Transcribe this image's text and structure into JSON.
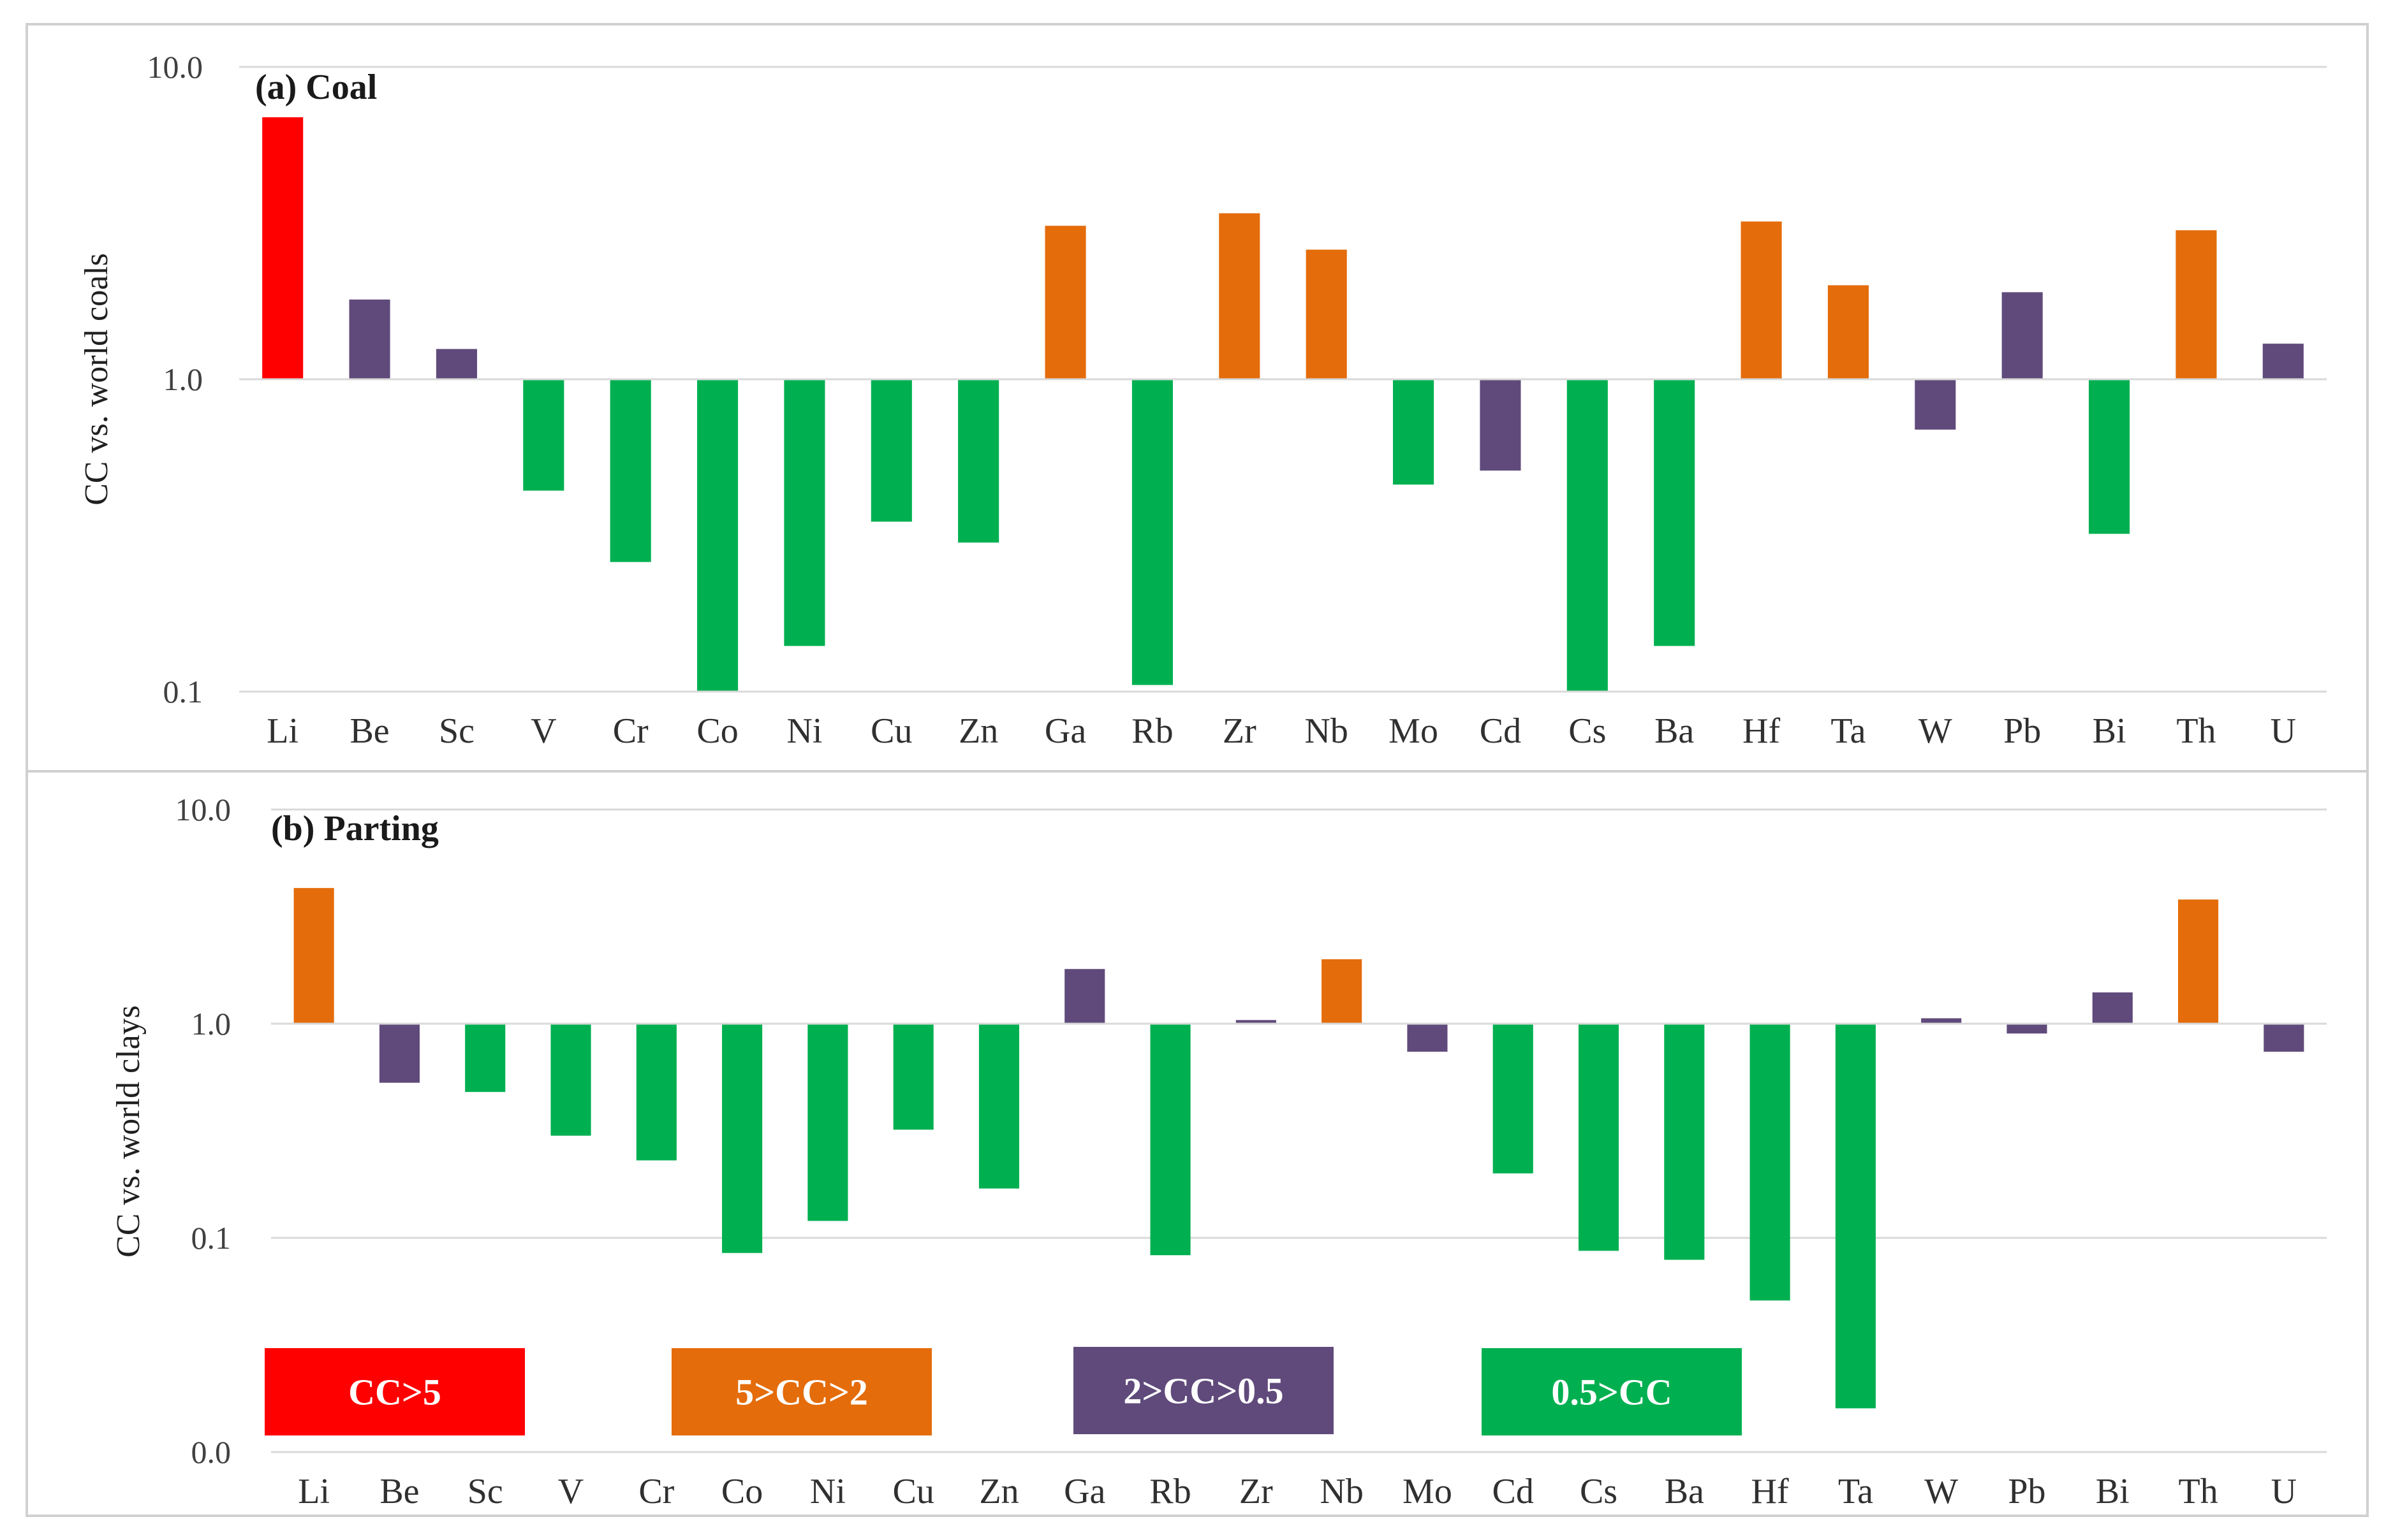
{
  "colors": {
    "cc_gt_5": "#ff0000",
    "cc_5_2": "#e46c0a",
    "cc_2_05": "#604a7b",
    "cc_lt_05": "#00b050"
  },
  "legend": [
    {
      "label": "CC>5",
      "color_key": "cc_gt_5"
    },
    {
      "label": "5>CC>2",
      "color_key": "cc_5_2"
    },
    {
      "label": "2>CC>0.5",
      "color_key": "cc_2_05"
    },
    {
      "label": "0.5>CC",
      "color_key": "cc_lt_05"
    }
  ],
  "chart_data": [
    {
      "type": "bar",
      "title": "(a) Coal",
      "ylabel": "CC vs. world coals",
      "yscale": "log",
      "ylim": [
        0.1,
        10.0
      ],
      "ytick_labels": [
        "10.0",
        "1.0",
        "0.1"
      ],
      "ytick_values": [
        10.0,
        1.0,
        0.1
      ],
      "baseline": 1.0,
      "categories": [
        "Li",
        "Be",
        "Sc",
        "V",
        "Cr",
        "Co",
        "Ni",
        "Cu",
        "Zn",
        "Ga",
        "Rb",
        "Zr",
        "Nb",
        "Mo",
        "Cd",
        "Cs",
        "Ba",
        "Hf",
        "Ta",
        "W",
        "Pb",
        "Bi",
        "Th",
        "U"
      ],
      "values": [
        6.9,
        1.8,
        1.25,
        0.44,
        0.26,
        0.1,
        0.14,
        0.35,
        0.3,
        3.1,
        0.105,
        3.4,
        2.6,
        0.46,
        0.51,
        0.1,
        0.14,
        3.2,
        2.0,
        0.69,
        1.9,
        0.32,
        3.0,
        1.3
      ],
      "classes": [
        "cc_gt_5",
        "cc_2_05",
        "cc_2_05",
        "cc_lt_05",
        "cc_lt_05",
        "cc_lt_05",
        "cc_lt_05",
        "cc_lt_05",
        "cc_lt_05",
        "cc_5_2",
        "cc_lt_05",
        "cc_5_2",
        "cc_5_2",
        "cc_lt_05",
        "cc_2_05",
        "cc_lt_05",
        "cc_lt_05",
        "cc_5_2",
        "cc_5_2",
        "cc_2_05",
        "cc_2_05",
        "cc_lt_05",
        "cc_5_2",
        "cc_2_05"
      ]
    },
    {
      "type": "bar",
      "title": "(b) Parting",
      "ylabel": "CC vs. world clays",
      "yscale": "log",
      "ylim": [
        0.01,
        10.0
      ],
      "ytick_labels": [
        "10.0",
        "1.0",
        "0.1",
        "0.0"
      ],
      "ytick_values": [
        10.0,
        1.0,
        0.1,
        0.01
      ],
      "baseline": 1.0,
      "categories": [
        "Li",
        "Be",
        "Sc",
        "V",
        "Cr",
        "Co",
        "Ni",
        "Cu",
        "Zn",
        "Ga",
        "Rb",
        "Zr",
        "Nb",
        "Mo",
        "Cd",
        "Cs",
        "Ba",
        "Hf",
        "Ta",
        "W",
        "Pb",
        "Bi",
        "Th",
        "U"
      ],
      "values": [
        4.3,
        0.53,
        0.48,
        0.3,
        0.23,
        0.085,
        0.12,
        0.32,
        0.17,
        1.8,
        0.083,
        1.04,
        2.0,
        0.74,
        0.2,
        0.087,
        0.079,
        0.051,
        0.016,
        1.06,
        0.9,
        1.4,
        3.8,
        0.74
      ],
      "classes": [
        "cc_5_2",
        "cc_2_05",
        "cc_lt_05",
        "cc_lt_05",
        "cc_lt_05",
        "cc_lt_05",
        "cc_lt_05",
        "cc_lt_05",
        "cc_lt_05",
        "cc_2_05",
        "cc_lt_05",
        "cc_2_05",
        "cc_5_2",
        "cc_2_05",
        "cc_lt_05",
        "cc_lt_05",
        "cc_lt_05",
        "cc_lt_05",
        "cc_lt_05",
        "cc_2_05",
        "cc_2_05",
        "cc_2_05",
        "cc_5_2",
        "cc_2_05"
      ]
    }
  ]
}
